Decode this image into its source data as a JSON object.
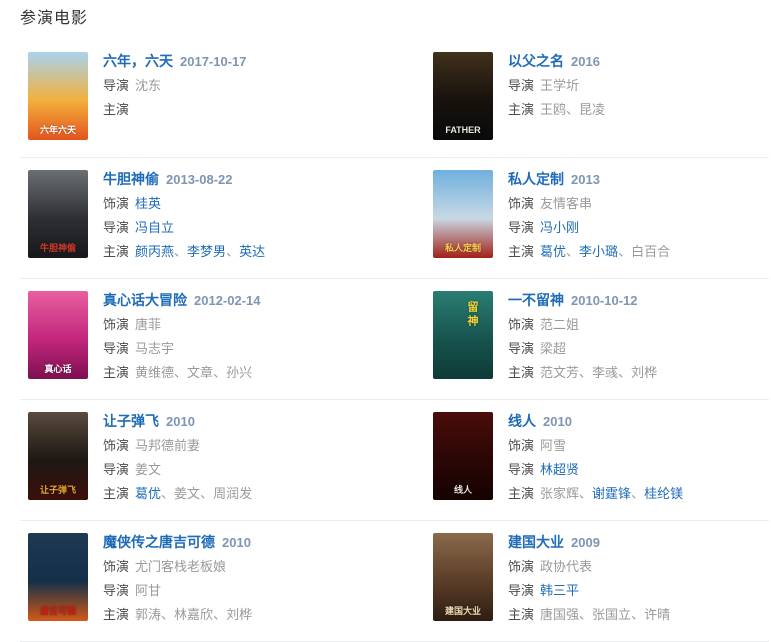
{
  "section_title": "参演电影",
  "name_separator": "、",
  "colors": {
    "heading": "#333333",
    "title_link": "#1e6bb8",
    "name_link": "#1e6bb8",
    "date": "#7e95b3",
    "credit_label": "#4d4d4d",
    "plain_name": "#9a9a9a",
    "divider": "#e9eef3"
  },
  "movies": [
    {
      "title": "六年，六天",
      "date": "2017-10-17",
      "lines": [
        {
          "label": "导演",
          "names": [
            {
              "text": "沈东",
              "link": false
            }
          ]
        },
        {
          "label": "主演",
          "names": []
        }
      ],
      "poster": {
        "colors": [
          "#a9d3ee",
          "#f2b03c",
          "#e4541e"
        ],
        "label": "六年六天",
        "label_color": "#ffffff",
        "vertical": false
      }
    },
    {
      "title": "以父之名",
      "date": "2016",
      "lines": [
        {
          "label": "导演",
          "names": [
            {
              "text": "王学圻",
              "link": false
            }
          ]
        },
        {
          "label": "主演",
          "names": [
            {
              "text": "王鸥",
              "link": false
            },
            {
              "text": "昆凌",
              "link": false
            }
          ]
        }
      ],
      "poster": {
        "colors": [
          "#41301c",
          "#17120d",
          "#0a0a0a"
        ],
        "label": "FATHER",
        "label_color": "#e8e6e0",
        "vertical": false
      }
    },
    {
      "title": "牛胆神偷",
      "date": "2013-08-22",
      "lines": [
        {
          "label": "饰演",
          "names": [
            {
              "text": "桂英",
              "link": true
            }
          ]
        },
        {
          "label": "导演",
          "names": [
            {
              "text": "冯自立",
              "link": true
            }
          ]
        },
        {
          "label": "主演",
          "names": [
            {
              "text": "颜丙燕",
              "link": true
            },
            {
              "text": "李梦男",
              "link": true
            },
            {
              "text": "英达",
              "link": true
            }
          ]
        }
      ],
      "poster": {
        "colors": [
          "#6b6f74",
          "#2d2f33",
          "#17181b"
        ],
        "label": "牛胆神偷",
        "label_color": "#d23b2a",
        "vertical": false
      }
    },
    {
      "title": "私人定制",
      "date": "2013",
      "lines": [
        {
          "label": "饰演",
          "names": [
            {
              "text": "友情客串",
              "link": false
            }
          ]
        },
        {
          "label": "导演",
          "names": [
            {
              "text": "冯小刚",
              "link": true
            }
          ]
        },
        {
          "label": "主演",
          "names": [
            {
              "text": "葛优",
              "link": true
            },
            {
              "text": "李小璐",
              "link": true
            },
            {
              "text": "白百合",
              "link": false
            }
          ]
        }
      ],
      "poster": {
        "colors": [
          "#6fb0dd",
          "#c8d8e4",
          "#a32017"
        ],
        "label": "私人定制",
        "label_color": "#f3d14e",
        "vertical": false
      }
    },
    {
      "title": "真心话大冒险",
      "date": "2012-02-14",
      "lines": [
        {
          "label": "饰演",
          "names": [
            {
              "text": "唐菲",
              "link": false
            }
          ]
        },
        {
          "label": "导演",
          "names": [
            {
              "text": "马志宇",
              "link": false
            }
          ]
        },
        {
          "label": "主演",
          "names": [
            {
              "text": "黄维德",
              "link": false
            },
            {
              "text": "文章",
              "link": false
            },
            {
              "text": "孙兴",
              "link": false
            }
          ]
        }
      ],
      "poster": {
        "colors": [
          "#e85fa0",
          "#c2267d",
          "#7d1050"
        ],
        "label": "真心话",
        "label_color": "#ffffff",
        "vertical": false
      }
    },
    {
      "title": "一不留神",
      "date": "2010-10-12",
      "lines": [
        {
          "label": "饰演",
          "names": [
            {
              "text": "范二姐",
              "link": false
            }
          ]
        },
        {
          "label": "导演",
          "names": [
            {
              "text": "梁超",
              "link": false
            }
          ]
        },
        {
          "label": "主演",
          "names": [
            {
              "text": "范文芳",
              "link": false
            },
            {
              "text": "李彧",
              "link": false
            },
            {
              "text": "刘桦",
              "link": false
            }
          ]
        }
      ],
      "poster": {
        "colors": [
          "#2a7d73",
          "#17544e",
          "#0e3a36"
        ],
        "label": "留神",
        "label_color": "#f2d430",
        "vertical": true
      }
    },
    {
      "title": "让子弹飞",
      "date": "2010",
      "lines": [
        {
          "label": "饰演",
          "names": [
            {
              "text": "马邦德前妻",
              "link": false
            }
          ]
        },
        {
          "label": "导演",
          "names": [
            {
              "text": "姜文",
              "link": false
            }
          ]
        },
        {
          "label": "主演",
          "names": [
            {
              "text": "葛优",
              "link": true
            },
            {
              "text": "姜文",
              "link": false
            },
            {
              "text": "周润发",
              "link": false
            }
          ]
        }
      ],
      "poster": {
        "colors": [
          "#5a4b3d",
          "#1c1713",
          "#3d0f0a"
        ],
        "label": "让子弹飞",
        "label_color": "#e0a82e",
        "vertical": false
      }
    },
    {
      "title": "线人",
      "date": "2010",
      "lines": [
        {
          "label": "饰演",
          "names": [
            {
              "text": "阿雪",
              "link": false
            }
          ]
        },
        {
          "label": "导演",
          "names": [
            {
              "text": "林超贤",
              "link": true
            }
          ]
        },
        {
          "label": "主演",
          "names": [
            {
              "text": "张家辉",
              "link": false
            },
            {
              "text": "谢霆锋",
              "link": true
            },
            {
              "text": "桂纶镁",
              "link": true
            }
          ]
        }
      ],
      "poster": {
        "colors": [
          "#4a0d0a",
          "#2a0605",
          "#150302"
        ],
        "label": "线人",
        "label_color": "#e8e4de",
        "vertical": false
      }
    },
    {
      "title": "魔侠传之唐吉可德",
      "date": "2010",
      "lines": [
        {
          "label": "饰演",
          "names": [
            {
              "text": "尤门客栈老板娘",
              "link": false
            }
          ]
        },
        {
          "label": "导演",
          "names": [
            {
              "text": "阿甘",
              "link": false
            }
          ]
        },
        {
          "label": "主演",
          "names": [
            {
              "text": "郭涛",
              "link": false
            },
            {
              "text": "林嘉欣",
              "link": false
            },
            {
              "text": "刘桦",
              "link": false
            }
          ]
        }
      ],
      "poster": {
        "colors": [
          "#1d3a52",
          "#143048",
          "#d4591a"
        ],
        "label": "唐吉可德",
        "label_color": "#c41e12",
        "vertical": false
      }
    },
    {
      "title": "建国大业",
      "date": "2009",
      "lines": [
        {
          "label": "饰演",
          "names": [
            {
              "text": "政协代表",
              "link": false
            }
          ]
        },
        {
          "label": "导演",
          "names": [
            {
              "text": "韩三平",
              "link": true
            }
          ]
        },
        {
          "label": "主演",
          "names": [
            {
              "text": "唐国强",
              "link": false
            },
            {
              "text": "张国立",
              "link": false
            },
            {
              "text": "许晴",
              "link": false
            }
          ]
        }
      ],
      "poster": {
        "colors": [
          "#8a6a4a",
          "#5a3d28",
          "#2e1d12"
        ],
        "label": "建国大业",
        "label_color": "#e8d9b0",
        "vertical": false
      }
    }
  ]
}
